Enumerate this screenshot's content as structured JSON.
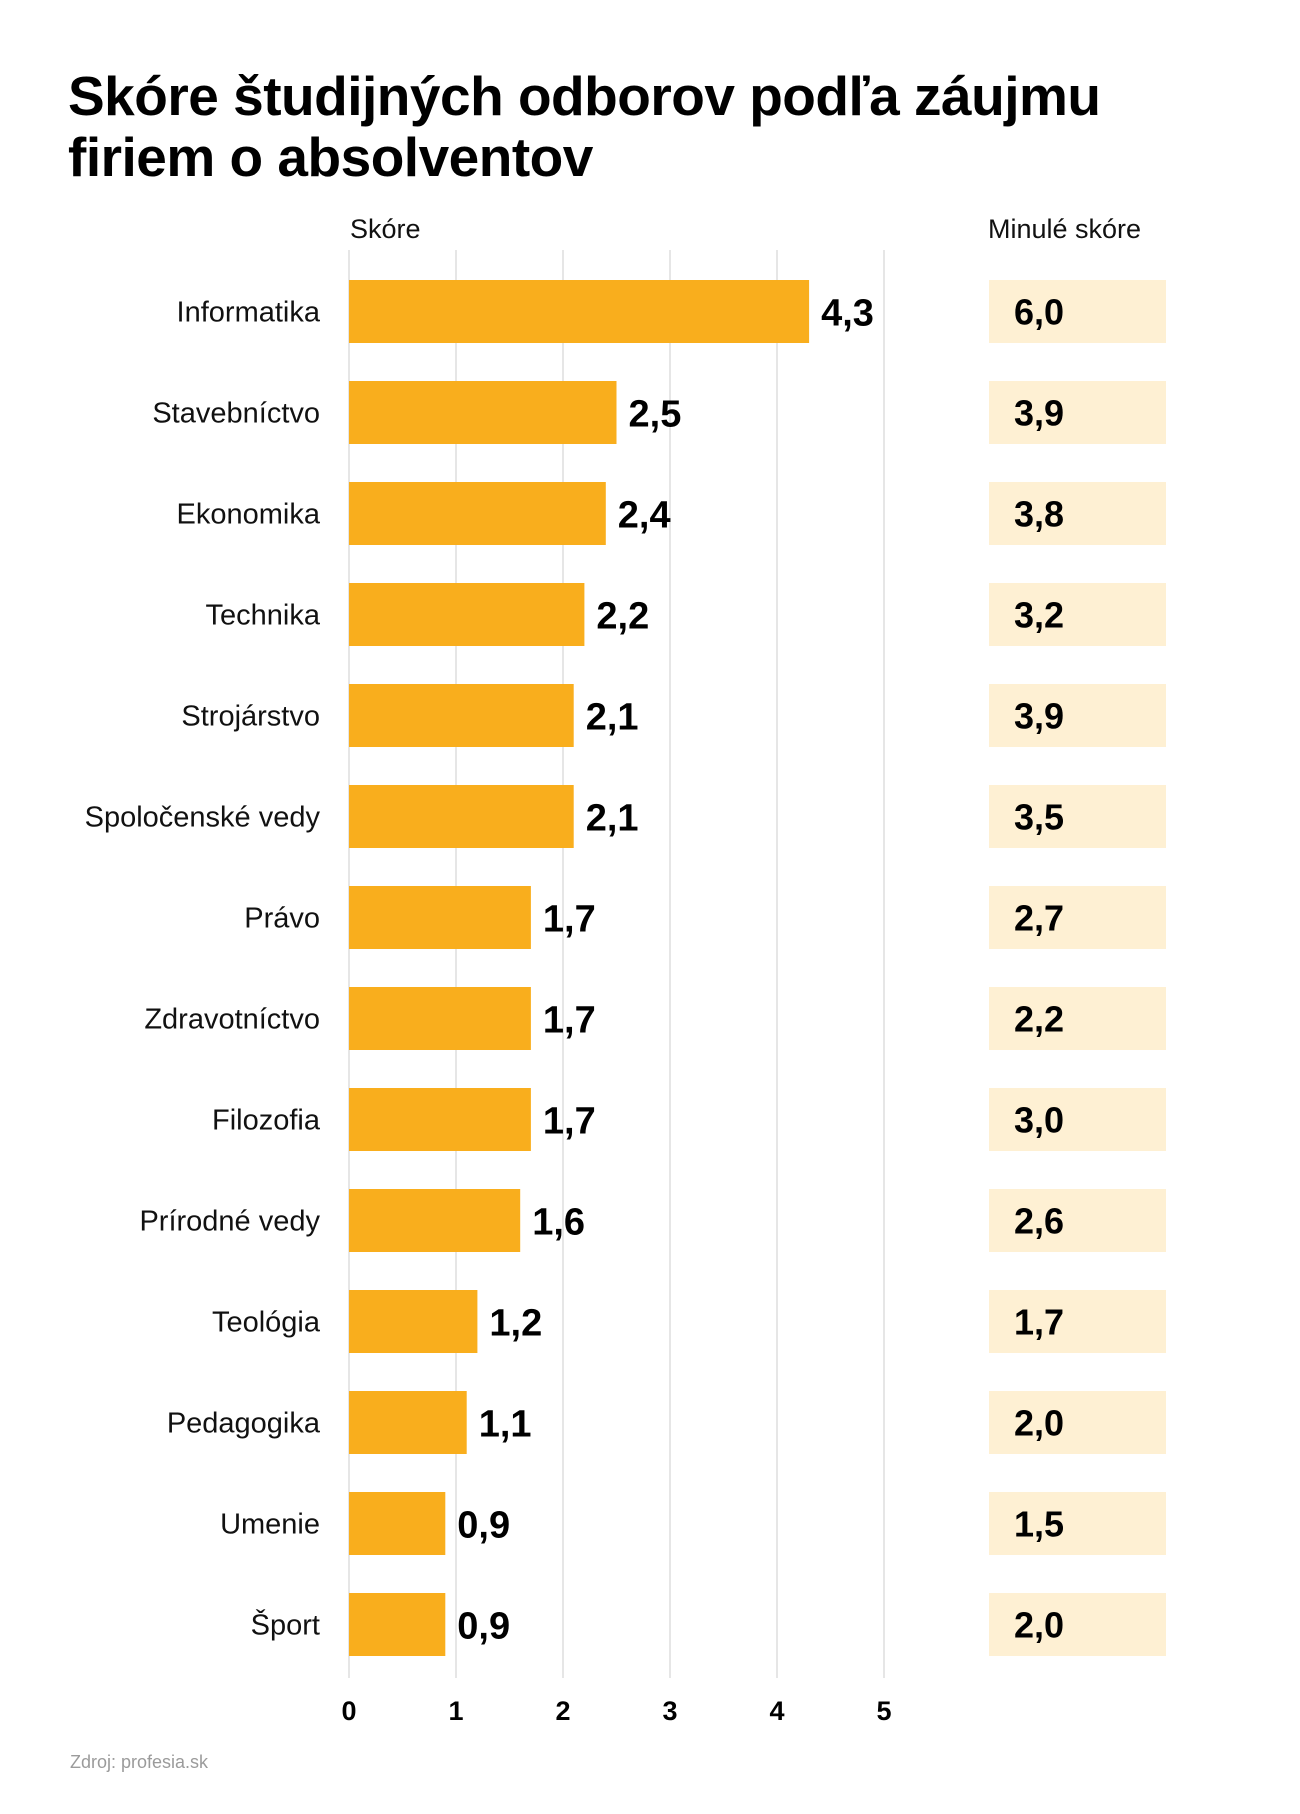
{
  "chart_data": {
    "type": "bar",
    "orientation": "horizontal",
    "title": "Skóre študijných odborov podľa záujmu firiem o absolventov",
    "xlabel": "Skóre",
    "ylabel": "",
    "xlim": [
      0,
      5
    ],
    "x_ticks": [
      "0",
      "1",
      "2",
      "3",
      "4",
      "5"
    ],
    "grid": true,
    "categories": [
      "Informatika",
      "Stavebníctvo",
      "Ekonomika",
      "Technika",
      "Strojárstvo",
      "Spoločenské vedy",
      "Právo",
      "Zdravotníctvo",
      "Filozofia",
      "Prírodné vedy",
      "Teológia",
      "Pedagogika",
      "Umenie",
      "Šport"
    ],
    "series": [
      {
        "name": "Skóre",
        "values": [
          4.3,
          2.5,
          2.4,
          2.2,
          2.1,
          2.1,
          1.7,
          1.7,
          1.7,
          1.6,
          1.2,
          1.1,
          0.9,
          0.9
        ],
        "labels": [
          "4,3",
          "2,5",
          "2,4",
          "2,2",
          "2,1",
          "2,1",
          "1,7",
          "1,7",
          "1,7",
          "1,6",
          "1,2",
          "1,1",
          "0,9",
          "0,9"
        ],
        "color": "#F9AE1D"
      },
      {
        "name": "Minulé skóre",
        "values": [
          6.0,
          3.9,
          3.8,
          3.2,
          3.9,
          3.5,
          2.7,
          2.2,
          3.0,
          2.6,
          1.7,
          2.0,
          1.5,
          2.0
        ],
        "labels": [
          "6,0",
          "3,9",
          "3,8",
          "3,2",
          "3,9",
          "3,5",
          "2,7",
          "2,2",
          "3,0",
          "2,6",
          "1,7",
          "2,0",
          "1,5",
          "2,0"
        ],
        "color": "#FEF0D3"
      }
    ],
    "grid_color": "#DDDDDD"
  },
  "header": {
    "title": "Skóre študijných odborov podľa záujmu firiem o absolventov",
    "score_column": "Skóre",
    "previous_column": "Minulé skóre"
  },
  "footer": {
    "source": "Zdroj: profesia.sk"
  }
}
